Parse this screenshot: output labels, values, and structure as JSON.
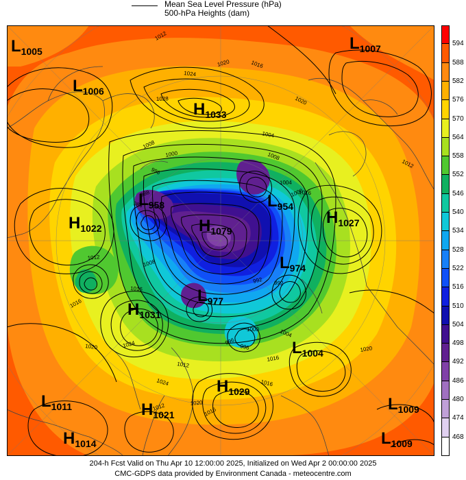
{
  "legend": {
    "mslp_label": "Mean Sea Level Pressure (hPa)",
    "heights_label": "500-hPa Heights (dam)"
  },
  "colorbar": {
    "levels": [
      {
        "label": "594",
        "color": "#ff0000"
      },
      {
        "label": "588",
        "color": "#ff5a00"
      },
      {
        "label": "582",
        "color": "#ff8a10"
      },
      {
        "label": "576",
        "color": "#ffb000"
      },
      {
        "label": "570",
        "color": "#ffd400"
      },
      {
        "label": "564",
        "color": "#e8f020"
      },
      {
        "label": "558",
        "color": "#a8e020"
      },
      {
        "label": "552",
        "color": "#50c830"
      },
      {
        "label": "546",
        "color": "#10b060"
      },
      {
        "label": "540",
        "color": "#10c8a0"
      },
      {
        "label": "534",
        "color": "#10c8d8"
      },
      {
        "label": "528",
        "color": "#10a8f0"
      },
      {
        "label": "522",
        "color": "#1880f8"
      },
      {
        "label": "516",
        "color": "#1050f8"
      },
      {
        "label": "510",
        "color": "#1020e0"
      },
      {
        "label": "504",
        "color": "#1010b0"
      },
      {
        "label": "498",
        "color": "#401090"
      },
      {
        "label": "492",
        "color": "#602090"
      },
      {
        "label": "486",
        "color": "#8040a8"
      },
      {
        "label": "480",
        "color": "#a070c0"
      },
      {
        "label": "474",
        "color": "#c0a0d8"
      },
      {
        "label": "468",
        "color": "#e0d0f0"
      },
      {
        "label": "",
        "color": "#ffffff"
      }
    ]
  },
  "centers": [
    {
      "type": "L",
      "value": "1005"
    },
    {
      "type": "L",
      "value": "1007"
    },
    {
      "type": "L",
      "value": "1006"
    },
    {
      "type": "H",
      "value": "1033"
    },
    {
      "type": "L",
      "value": "958"
    },
    {
      "type": "L",
      "value": "954"
    },
    {
      "type": "H",
      "value": "1079"
    },
    {
      "type": "H",
      "value": "1022"
    },
    {
      "type": "H",
      "value": "1027"
    },
    {
      "type": "L",
      "value": "974"
    },
    {
      "type": "H",
      "value": "1031"
    },
    {
      "type": "L",
      "value": "977"
    },
    {
      "type": "L",
      "value": "1004"
    },
    {
      "type": "H",
      "value": "1029"
    },
    {
      "type": "L",
      "value": "1011"
    },
    {
      "type": "L",
      "value": "1009"
    },
    {
      "type": "H",
      "value": "1021"
    },
    {
      "type": "H",
      "value": "1014"
    },
    {
      "type": "L",
      "value": "1009"
    }
  ],
  "isobar_labels": [
    "1012",
    "1024",
    "1020",
    "1016",
    "1028",
    "1008",
    "1004",
    "1000",
    "996",
    "992",
    "988",
    "984",
    "1012",
    "1016",
    "1020",
    "1024",
    "1008",
    "1004",
    "1000",
    "996",
    "1016",
    "1020",
    "1016",
    "1012",
    "1024",
    "1020",
    "1016",
    "1012",
    "992",
    "1004",
    "1000",
    "996",
    "1016",
    "1020",
    "1012",
    "1016",
    "1008"
  ],
  "footer": {
    "line1": "204-h Fcst Valid on Thu Apr 10 12:00:00 2025, Initialized on Wed Apr  2 00:00:00 2025",
    "line2": "CMC-GDPS data provided by Environment Canada - meteocentre.com"
  }
}
